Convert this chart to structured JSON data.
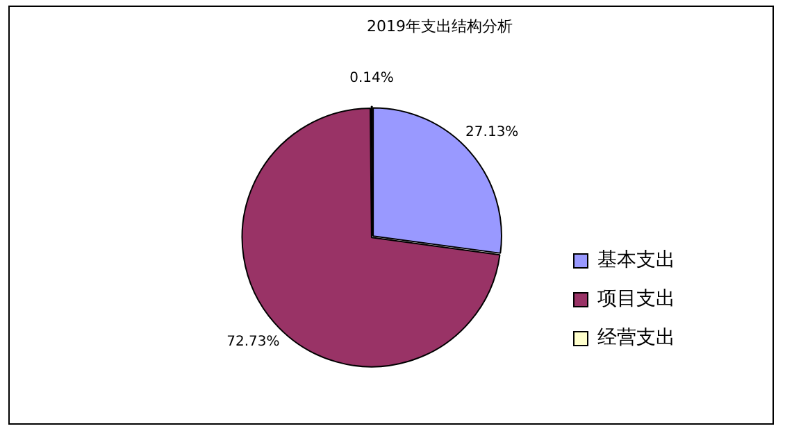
{
  "chart_data": {
    "type": "pie",
    "title": "2019年支出结构分析",
    "categories": [
      "基本支出",
      "项目支出",
      "经营支出"
    ],
    "values": [
      27.13,
      72.73,
      0.14
    ],
    "colors": [
      "#9999ff",
      "#993366",
      "#ffffcc"
    ],
    "value_labels": [
      "27.13%",
      "72.73%",
      "0.14%"
    ],
    "legend": "right"
  }
}
